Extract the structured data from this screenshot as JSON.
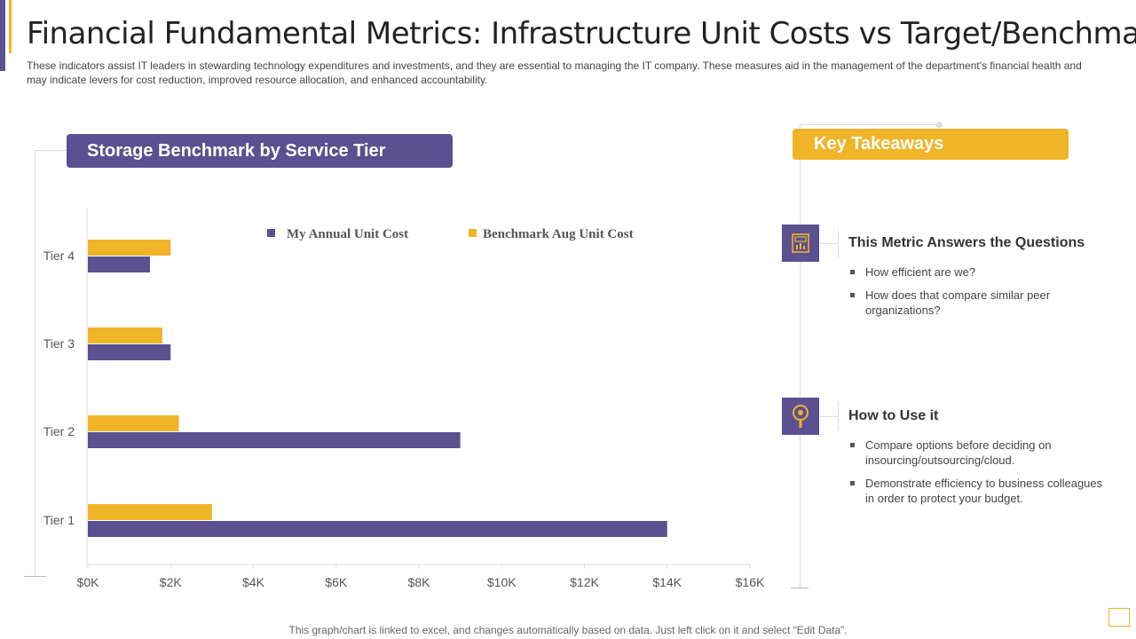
{
  "title": "Financial Fundamental Metrics: Infrastructure Unit Costs vs Target/Benchmarks",
  "description": "These indicators assist IT leaders in stewarding technology expenditures and investments, and they are essential to managing the IT company. These measures aid in the management of the department's financial health and may indicate levers for cost reduction, improved resource allocation, and enhanced accountability.",
  "chart_header": "Storage Benchmark by Service Tier",
  "chart_data": {
    "type": "bar",
    "orientation": "horizontal",
    "title": "Storage Benchmark by Service Tier",
    "categories": [
      "Tier 4",
      "Tier 3",
      "Tier 2",
      "Tier 1"
    ],
    "series": [
      {
        "name": "My Annual  Unit Cost",
        "color": "#5b5090",
        "values": [
          1500,
          2000,
          9000,
          14000
        ]
      },
      {
        "name": "Benchmark Aug Unit Cost",
        "color": "#f0b429",
        "values": [
          2000,
          1800,
          2200,
          3000
        ]
      }
    ],
    "xlim": [
      0,
      16000
    ],
    "xticks": [
      0,
      2000,
      4000,
      6000,
      8000,
      10000,
      12000,
      14000,
      16000
    ],
    "xtick_labels": [
      "$0K",
      "$2K",
      "$4K",
      "$6K",
      "$8K",
      "$10K",
      "$12K",
      "$14K",
      "$16K"
    ],
    "legend_position": "top-center"
  },
  "takeaways": {
    "header": "Key Takeaways",
    "sections": [
      {
        "icon": "chart-document-icon",
        "title": "This Metric  Answers the Questions",
        "bullets": [
          "How efficient are we?",
          "How does that compare similar peer organizations?"
        ]
      },
      {
        "icon": "magnifier-icon",
        "title": "How to Use it",
        "bullets": [
          "Compare options before deciding on insourcing/outsourcing/cloud.",
          "Demonstrate efficiency to business colleagues in order to protect your budget."
        ]
      }
    ]
  },
  "footer_note": "This graph/chart is linked to excel,  and changes automatically based on data. Just left click on it and select “Edit Data”.",
  "colors": {
    "purple": "#5b5090",
    "gold": "#f0b429"
  }
}
